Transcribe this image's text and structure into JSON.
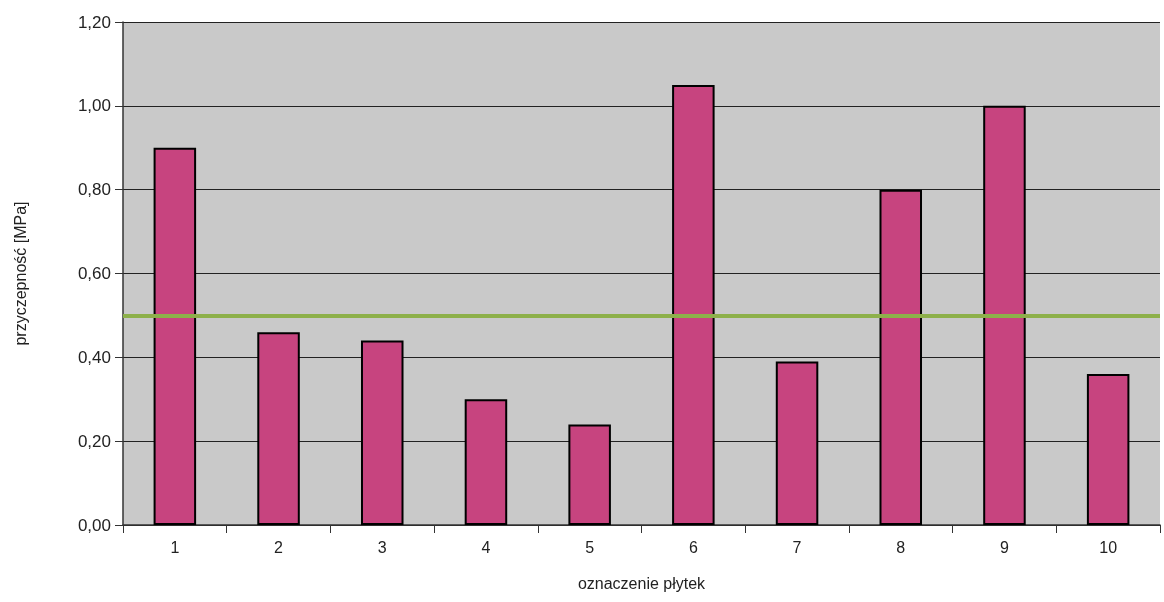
{
  "chart_data": {
    "type": "bar",
    "xlabel": "oznaczenie płytek",
    "ylabel": "przyczepność [MPa]",
    "categories": [
      "1",
      "2",
      "3",
      "4",
      "5",
      "6",
      "7",
      "8",
      "9",
      "10"
    ],
    "values": [
      0.9,
      0.46,
      0.44,
      0.3,
      0.24,
      1.05,
      0.39,
      0.8,
      1.0,
      0.36
    ],
    "color": "#c7447f",
    "ylim": [
      0,
      1.2
    ],
    "yticks": [
      {
        "value": 0,
        "label": "0,00"
      },
      {
        "value": 0.2,
        "label": "0,20"
      },
      {
        "value": 0.4,
        "label": "0,40"
      },
      {
        "value": 0.6,
        "label": "0,60"
      },
      {
        "value": 0.8,
        "label": "0,80"
      },
      {
        "value": 1.0,
        "label": "1,00"
      },
      {
        "value": 1.2,
        "label": "1,20"
      }
    ],
    "grid": "y",
    "ref_lines": [
      {
        "axis": "y",
        "value": 0.5,
        "color": "#8db04a"
      }
    ]
  }
}
